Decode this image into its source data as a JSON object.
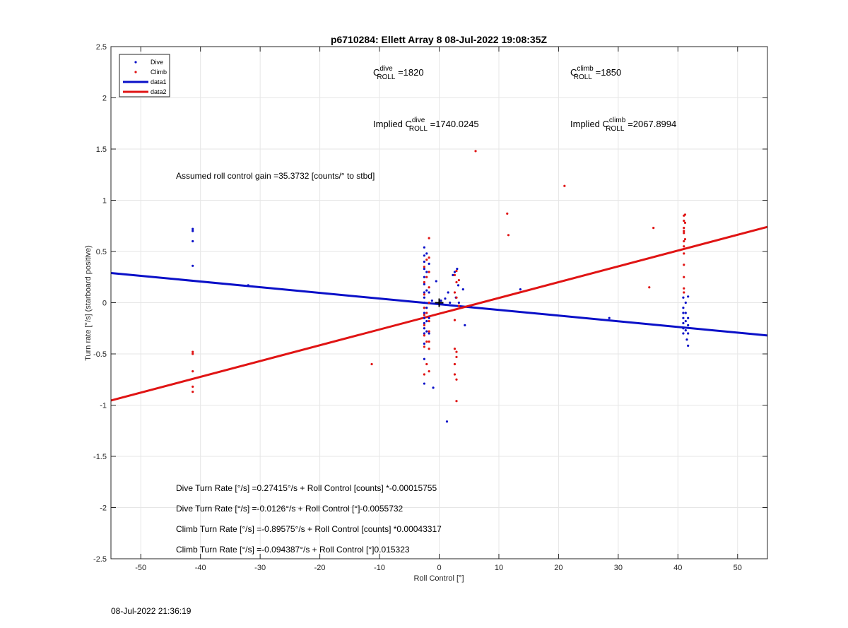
{
  "timestamp": "08-Jul-2022 21:36:19",
  "colors": {
    "dive": "#0a10c8",
    "climb": "#e01414",
    "grid": "#e6e6e6",
    "axis": "#262626"
  },
  "chart_data": {
    "type": "scatter",
    "title": "p6710284: Ellett Array 8 08-Jul-2022 19:08:35Z",
    "xlabel": "Roll Control [°]",
    "ylabel": "Turn rate [°/s] (starboard positive)",
    "xlim": [
      -55,
      55
    ],
    "ylim": [
      -2.5,
      2.5
    ],
    "xticks": [
      -50,
      -40,
      -30,
      -20,
      -10,
      0,
      10,
      20,
      30,
      40,
      50
    ],
    "yticks": [
      -2.5,
      -2,
      -1.5,
      -1,
      -0.5,
      0,
      0.5,
      1,
      1.5,
      2,
      2.5
    ],
    "xtick_labels": [
      "-50",
      "-40",
      "-30",
      "-20",
      "-10",
      "0",
      "10",
      "20",
      "30",
      "40",
      "50"
    ],
    "ytick_labels": [
      "-2.5",
      "-2",
      "-1.5",
      "-1",
      "-0.5",
      "0",
      "0.5",
      "1",
      "1.5",
      "2",
      "2.5"
    ],
    "grid": true,
    "legend_position": "top-left",
    "legend": [
      "Dive",
      "Climb",
      "data1",
      "data2"
    ],
    "series": [
      {
        "name": "Dive",
        "kind": "points",
        "points": [
          [
            -41.3,
            0.72
          ],
          [
            -41.3,
            0.7
          ],
          [
            -41.3,
            0.6
          ],
          [
            -41.3,
            0.36
          ],
          [
            -32,
            0.17
          ],
          [
            -2.5,
            0.54
          ],
          [
            -2.5,
            0.46
          ],
          [
            -2.5,
            0.4
          ],
          [
            -2.5,
            0.33
          ],
          [
            -2.5,
            0.25
          ],
          [
            -2.5,
            0.18
          ],
          [
            -2.5,
            0.1
          ],
          [
            -2.5,
            0.05
          ],
          [
            -2.5,
            0.0
          ],
          [
            -2.5,
            -0.05
          ],
          [
            -2.5,
            -0.1
          ],
          [
            -2.5,
            -0.15
          ],
          [
            -2.5,
            -0.2
          ],
          [
            -2.5,
            -0.25
          ],
          [
            -2.5,
            -0.3
          ],
          [
            -2.5,
            -0.4
          ],
          [
            -2.5,
            -0.55
          ],
          [
            -2.5,
            -0.79
          ],
          [
            -2.1,
            0.48
          ],
          [
            -2.1,
            0.3
          ],
          [
            -2.1,
            0.12
          ],
          [
            -2.1,
            -0.05
          ],
          [
            -2.1,
            -0.18
          ],
          [
            -2.1,
            -0.28
          ],
          [
            -1.7,
            0.38
          ],
          [
            -1.7,
            0.1
          ],
          [
            -1.7,
            -0.15
          ],
          [
            -1.7,
            -0.3
          ],
          [
            -1.2,
            0.02
          ],
          [
            -1.0,
            -0.83
          ],
          [
            -0.5,
            0.21
          ],
          [
            0.0,
            0.0
          ],
          [
            0.3,
            0.02
          ],
          [
            0.5,
            -0.01
          ],
          [
            1.0,
            0.04
          ],
          [
            1.3,
            -1.16
          ],
          [
            1.5,
            0.1
          ],
          [
            1.8,
            0.0
          ],
          [
            2.3,
            0.27
          ],
          [
            2.6,
            0.3
          ],
          [
            2.8,
            0.05
          ],
          [
            3.0,
            0.33
          ],
          [
            3.2,
            0.17
          ],
          [
            3.3,
            0.0
          ],
          [
            4.0,
            0.13
          ],
          [
            4.3,
            -0.22
          ],
          [
            13.6,
            0.13
          ],
          [
            28.5,
            -0.15
          ],
          [
            40.9,
            0.05
          ],
          [
            40.9,
            -0.05
          ],
          [
            40.9,
            -0.1
          ],
          [
            40.9,
            -0.15
          ],
          [
            40.9,
            -0.2
          ],
          [
            40.9,
            -0.25
          ],
          [
            40.9,
            -0.3
          ],
          [
            41.3,
            0.0
          ],
          [
            41.3,
            -0.1
          ],
          [
            41.3,
            -0.18
          ],
          [
            41.3,
            -0.27
          ],
          [
            41.5,
            -0.36
          ],
          [
            41.7,
            0.06
          ],
          [
            41.7,
            -0.15
          ],
          [
            41.7,
            -0.22
          ],
          [
            41.7,
            -0.3
          ],
          [
            41.7,
            -0.42
          ]
        ]
      },
      {
        "name": "Climb",
        "kind": "points",
        "points": [
          [
            -41.3,
            -0.48
          ],
          [
            -41.3,
            -0.5
          ],
          [
            -41.3,
            -0.67
          ],
          [
            -41.3,
            -0.82
          ],
          [
            -41.3,
            -0.87
          ],
          [
            -11.3,
            -0.6
          ],
          [
            -2.5,
            0.35
          ],
          [
            -2.5,
            0.2
          ],
          [
            -2.5,
            0.08
          ],
          [
            -2.5,
            -0.05
          ],
          [
            -2.5,
            -0.12
          ],
          [
            -2.5,
            -0.22
          ],
          [
            -2.5,
            -0.32
          ],
          [
            -2.5,
            -0.43
          ],
          [
            -2.5,
            -0.7
          ],
          [
            -2.1,
            0.42
          ],
          [
            -2.1,
            0.25
          ],
          [
            -2.1,
            -0.1
          ],
          [
            -2.1,
            -0.38
          ],
          [
            -2.1,
            -0.6
          ],
          [
            -1.7,
            0.63
          ],
          [
            -1.7,
            0.44
          ],
          [
            -1.7,
            0.3
          ],
          [
            -1.7,
            0.15
          ],
          [
            -1.7,
            0.0
          ],
          [
            -1.7,
            -0.18
          ],
          [
            -1.7,
            -0.28
          ],
          [
            -1.7,
            -0.38
          ],
          [
            -1.7,
            -0.45
          ],
          [
            -1.7,
            -0.67
          ],
          [
            2.6,
            0.27
          ],
          [
            2.6,
            0.1
          ],
          [
            2.6,
            -0.17
          ],
          [
            2.6,
            -0.45
          ],
          [
            2.6,
            -0.6
          ],
          [
            2.6,
            -0.7
          ],
          [
            2.9,
            0.31
          ],
          [
            2.9,
            0.2
          ],
          [
            2.9,
            0.05
          ],
          [
            2.9,
            -0.48
          ],
          [
            2.9,
            -0.53
          ],
          [
            2.9,
            -0.75
          ],
          [
            2.9,
            -0.96
          ],
          [
            3.3,
            0.22
          ],
          [
            3.3,
            -0.03
          ],
          [
            6.1,
            1.48
          ],
          [
            11.4,
            0.87
          ],
          [
            11.6,
            0.66
          ],
          [
            21.0,
            1.14
          ],
          [
            35.2,
            0.15
          ],
          [
            35.9,
            0.73
          ],
          [
            41.0,
            0.85
          ],
          [
            41.0,
            0.8
          ],
          [
            41.0,
            0.73
          ],
          [
            41.0,
            0.7
          ],
          [
            41.0,
            0.68
          ],
          [
            41.0,
            0.6
          ],
          [
            41.0,
            0.55
          ],
          [
            41.0,
            0.48
          ],
          [
            41.0,
            0.37
          ],
          [
            41.0,
            0.25
          ],
          [
            41.0,
            0.14
          ],
          [
            41.0,
            0.1
          ],
          [
            41.2,
            0.86
          ],
          [
            41.2,
            0.78
          ],
          [
            41.2,
            0.62
          ]
        ]
      },
      {
        "name": "data1",
        "kind": "line",
        "x": [
          -55,
          55
        ],
        "y": [
          0.29,
          -0.32
        ]
      },
      {
        "name": "data2",
        "kind": "line",
        "x": [
          -55,
          55
        ],
        "y": [
          -0.955,
          0.74
        ]
      }
    ]
  },
  "annotations": {
    "c_dive": {
      "base": "C",
      "sup": "dive",
      "sub": "ROLL",
      "rest": " =1820"
    },
    "c_climb": {
      "base": "C",
      "sup": "climb",
      "sub": "ROLL",
      "rest": " =1850"
    },
    "implied_dive": {
      "prefix": "Implied C",
      "sup": "dive",
      "sub": "ROLL",
      "rest": " =1740.0245"
    },
    "implied_climb": {
      "prefix": "Implied C",
      "sup": "climb",
      "sub": "ROLL",
      "rest": " =2067.8994"
    },
    "gain": "Assumed roll control gain =35.3732 [counts/° to stbd]",
    "equations": [
      "Dive Turn Rate [°/s] =0.27415°/s + Roll Control [counts] *-0.00015755",
      "Dive Turn Rate [°/s] =-0.0126°/s + Roll Control [°]-0.0055732",
      "Climb Turn Rate [°/s] =-0.89575°/s + Roll Control [counts] *0.00043317",
      "Climb Turn Rate [°/s] =-0.094387°/s + Roll Control [°]0.015323"
    ]
  }
}
